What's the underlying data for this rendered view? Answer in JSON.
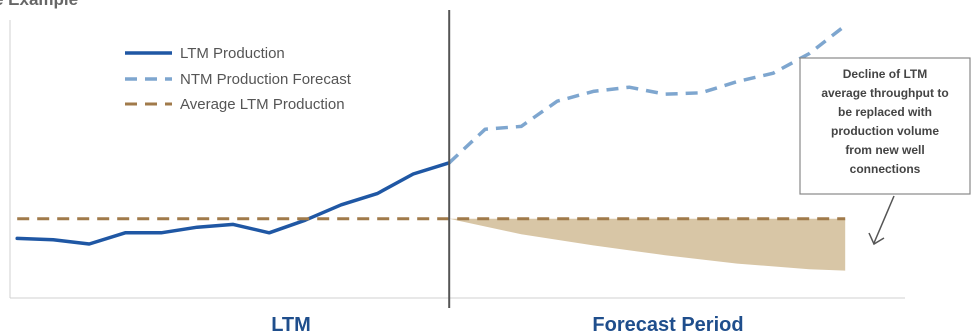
{
  "title": "e Example",
  "chart_data": {
    "type": "line",
    "x": [
      0,
      1,
      2,
      3,
      4,
      5,
      6,
      7,
      8,
      9,
      10,
      11,
      12,
      13,
      14,
      15,
      16,
      17,
      18,
      19,
      20,
      21,
      22,
      23
    ],
    "xlim": [
      -0.2,
      24.8
    ],
    "ylim": [
      0,
      100
    ],
    "series": [
      {
        "name": "LTM Production",
        "style": "solid",
        "color": "#1f57a4",
        "x": [
          0,
          1,
          2,
          3,
          4,
          5,
          6,
          7,
          8,
          9,
          10,
          11,
          12
        ],
        "values": [
          22,
          21.5,
          20,
          24,
          24,
          26,
          27,
          24,
          28.5,
          34,
          38,
          45,
          49
        ]
      },
      {
        "name": "NTM Production Forecast",
        "style": "dashed",
        "color": "#7ea6cf",
        "x": [
          12,
          13,
          14,
          15,
          16,
          17,
          18,
          19,
          20,
          21,
          22,
          23
        ],
        "values": [
          49,
          61,
          62,
          71,
          74.5,
          76,
          73.5,
          74,
          78,
          81,
          88,
          98
        ]
      },
      {
        "name": "Average LTM Production",
        "style": "dashed",
        "color": "#a07a4a",
        "x": [
          0,
          23
        ],
        "values": [
          29,
          29
        ]
      }
    ],
    "shaded_area": {
      "color": "#d8c6a6",
      "x": [
        12,
        14,
        16,
        18,
        20,
        22,
        23
      ],
      "upper": [
        29,
        29,
        29,
        29,
        29,
        29,
        29
      ],
      "lower": [
        29,
        23.5,
        19.5,
        16,
        13,
        11,
        10.5
      ]
    },
    "divider_x": 12,
    "period_labels": [
      "LTM",
      "Forecast Period"
    ],
    "legend_position": "top-left",
    "callout": {
      "lines": [
        "Decline of LTM",
        "average throughput to",
        "be replaced with",
        "production volume",
        "from new well",
        "connections"
      ]
    }
  }
}
